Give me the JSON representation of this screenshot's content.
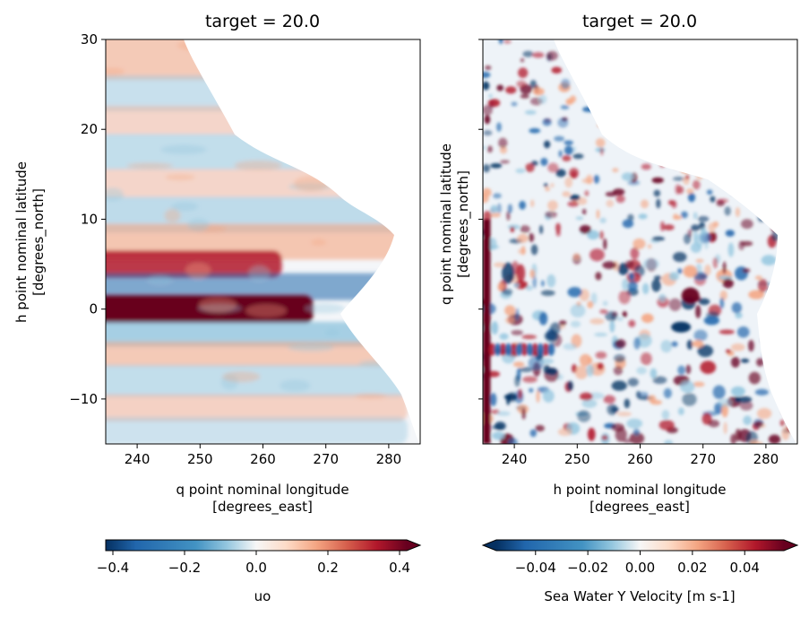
{
  "chart_data": [
    {
      "type": "heatmap",
      "title": "target = 20.0",
      "xlabel_line1": "q point nominal longitude",
      "xlabel_line2": "[degrees_east]",
      "ylabel_line1": "h point nominal latitude",
      "ylabel_line2": "[degrees_north]",
      "xlim": [
        235,
        285
      ],
      "ylim": [
        -15,
        30
      ],
      "xticks": [
        240,
        250,
        260,
        270,
        280
      ],
      "xtick_labels": [
        "240",
        "250",
        "260",
        "270",
        "280"
      ],
      "yticks": [
        -10,
        0,
        10,
        20,
        30
      ],
      "ytick_labels": [
        "−10",
        "0",
        "10",
        "20",
        "30"
      ],
      "show_yticklabels": true,
      "colormap": "RdBu_r",
      "colorbar": {
        "label": "uo",
        "vmin": -0.42,
        "vmax": 0.42,
        "extend": "max",
        "ticks": [
          -0.4,
          -0.2,
          0.0,
          0.2,
          0.4
        ],
        "tick_labels": [
          "−0.4",
          "−0.2",
          "0.0",
          "0.2",
          "0.4"
        ]
      }
    },
    {
      "type": "heatmap",
      "title": "target = 20.0",
      "xlabel_line1": "h point nominal longitude",
      "xlabel_line2": "[degrees_east]",
      "ylabel_line1": "q point nominal latitude",
      "ylabel_line2": "[degrees_north]",
      "xlim": [
        235,
        285
      ],
      "ylim": [
        -15,
        30
      ],
      "xticks": [
        240,
        250,
        260,
        270,
        280
      ],
      "xtick_labels": [
        "240",
        "250",
        "260",
        "270",
        "280"
      ],
      "yticks": [
        -10,
        0,
        10,
        20,
        30
      ],
      "ytick_labels": [
        "",
        "",
        "",
        "",
        ""
      ],
      "show_yticklabels": false,
      "colormap": "RdBu_r",
      "colorbar": {
        "label": "Sea Water Y Velocity [m s-1]",
        "vmin": -0.055,
        "vmax": 0.055,
        "extend": "both",
        "ticks": [
          -0.04,
          -0.02,
          0.0,
          0.02,
          0.04
        ],
        "tick_labels": [
          "−0.04",
          "−0.02",
          "0.00",
          "0.02",
          "0.04"
        ]
      }
    }
  ],
  "colors": {
    "deep_blue": "#053061",
    "blue": "#2166ac",
    "light_blue": "#92c5de",
    "white": "#f7f7f7",
    "light_red": "#f4a582",
    "red": "#b2182b",
    "deep_red": "#67001f",
    "land": "#ffffff"
  }
}
